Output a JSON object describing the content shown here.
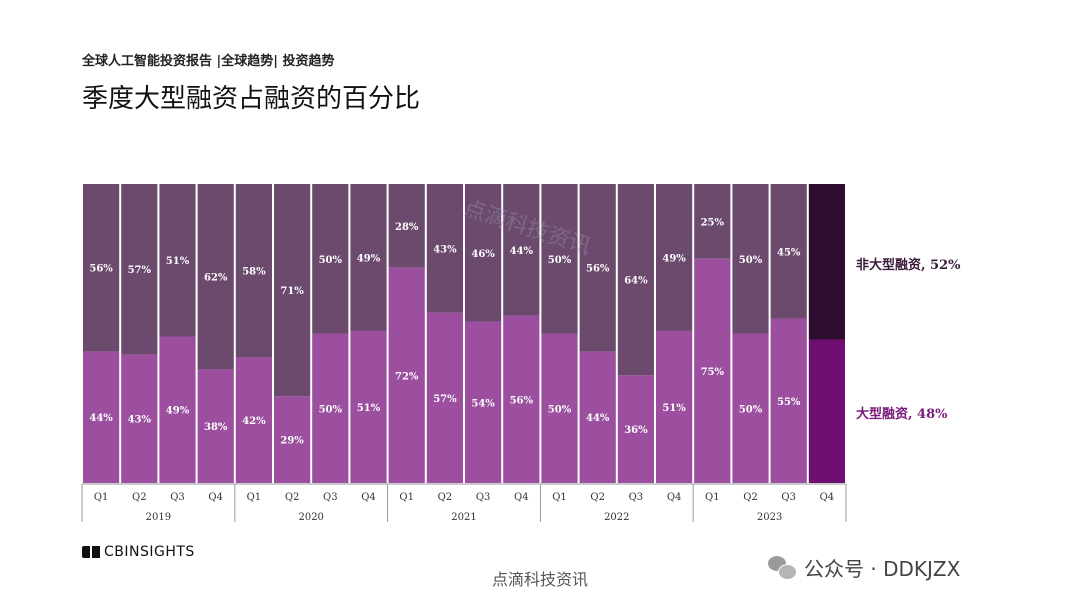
{
  "header": {
    "breadcrumb": "全球人工智能投资报告 |全球趋势| 投资趋势",
    "title": "季度大型融资占融资的百分比"
  },
  "legend": {
    "non_large": "非大型融资, 52%",
    "large": "大型融资, 48%"
  },
  "colors": {
    "large": "#9b4f9e",
    "non_large": "#6b4a6e",
    "large_latest": "#6e0d72",
    "non_large_latest": "#2e0c30",
    "bar_border": "#ffffff"
  },
  "chart_data": {
    "type": "bar",
    "stacked": true,
    "percent": true,
    "categories": [
      "Q1",
      "Q2",
      "Q3",
      "Q4",
      "Q1",
      "Q2",
      "Q3",
      "Q4",
      "Q1",
      "Q2",
      "Q3",
      "Q4",
      "Q1",
      "Q2",
      "Q3",
      "Q4",
      "Q1",
      "Q2",
      "Q3",
      "Q4"
    ],
    "years": [
      {
        "label": "2019",
        "count": 4
      },
      {
        "label": "2020",
        "count": 4
      },
      {
        "label": "2021",
        "count": 4
      },
      {
        "label": "2022",
        "count": 4
      },
      {
        "label": "2023",
        "count": 4
      }
    ],
    "series": [
      {
        "name": "大型融资",
        "values": [
          44,
          43,
          49,
          38,
          42,
          29,
          50,
          51,
          72,
          57,
          54,
          56,
          50,
          44,
          36,
          51,
          75,
          50,
          55,
          48
        ]
      },
      {
        "name": "非大型融资",
        "values": [
          56,
          57,
          51,
          62,
          58,
          71,
          50,
          49,
          28,
          43,
          46,
          44,
          50,
          56,
          64,
          49,
          25,
          50,
          45,
          52
        ]
      }
    ],
    "labels_large": [
      "44%",
      "43%",
      "49%",
      "38%",
      "42%",
      "29%",
      "50%",
      "51%",
      "72%",
      "57%",
      "54%",
      "56%",
      "50%",
      "44%",
      "36%",
      "51%",
      "75%",
      "50%",
      "55%",
      ""
    ],
    "labels_non_large": [
      "56%",
      "57%",
      "51%",
      "62%",
      "58%",
      "71%",
      "50%",
      "49%",
      "28%",
      "43%",
      "46%",
      "44%",
      "50%",
      "56%",
      "64%",
      "49%",
      "25%",
      "50%",
      "45%",
      ""
    ],
    "ylim": [
      0,
      100
    ],
    "legend": "right"
  },
  "footer": {
    "logo_text": "CBINSIGHTS",
    "caption": "点滴科技资讯",
    "wechat": "公众号 · DDKJZX",
    "watermark": "点滴科技资讯"
  }
}
